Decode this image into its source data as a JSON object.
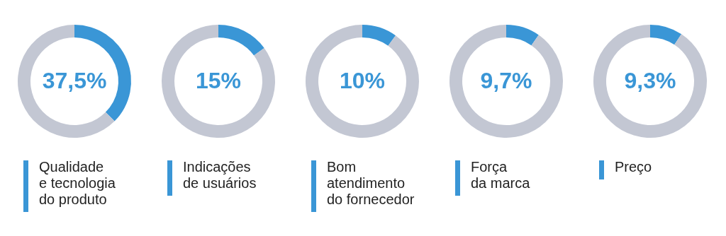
{
  "chart_data": [
    {
      "type": "donut",
      "title": "Qualidade\ne tecnologia\ndo produto",
      "categories": [
        null,
        null
      ],
      "values": [
        37.5,
        62.5
      ],
      "colors": [
        "#3a96d6",
        "#c3c7d3"
      ],
      "value_labels": [
        "37,5%",
        null
      ]
    },
    {
      "type": "donut",
      "title": "Indicações\nde usuários",
      "categories": [
        null,
        null
      ],
      "values": [
        15,
        85
      ],
      "colors": [
        "#3a96d6",
        "#c3c7d3"
      ],
      "value_labels": [
        "15%",
        null
      ]
    },
    {
      "type": "donut",
      "title": "Bom\natendimento\ndo fornecedor",
      "categories": [
        null,
        null
      ],
      "values": [
        10,
        90
      ],
      "colors": [
        "#3a96d6",
        "#c3c7d3"
      ],
      "value_labels": [
        "10%",
        null
      ]
    },
    {
      "type": "donut",
      "title": "Força\nda marca",
      "categories": [
        null,
        null
      ],
      "values": [
        9.7,
        90.3
      ],
      "colors": [
        "#3a96d6",
        "#c3c7d3"
      ],
      "value_labels": [
        "9,7%",
        null
      ]
    },
    {
      "type": "donut",
      "title": "Preço",
      "categories": [
        null,
        null
      ],
      "values": [
        9.3,
        90.7
      ],
      "colors": [
        "#3a96d6",
        "#c3c7d3"
      ],
      "value_labels": [
        "9,3%",
        null
      ]
    }
  ]
}
